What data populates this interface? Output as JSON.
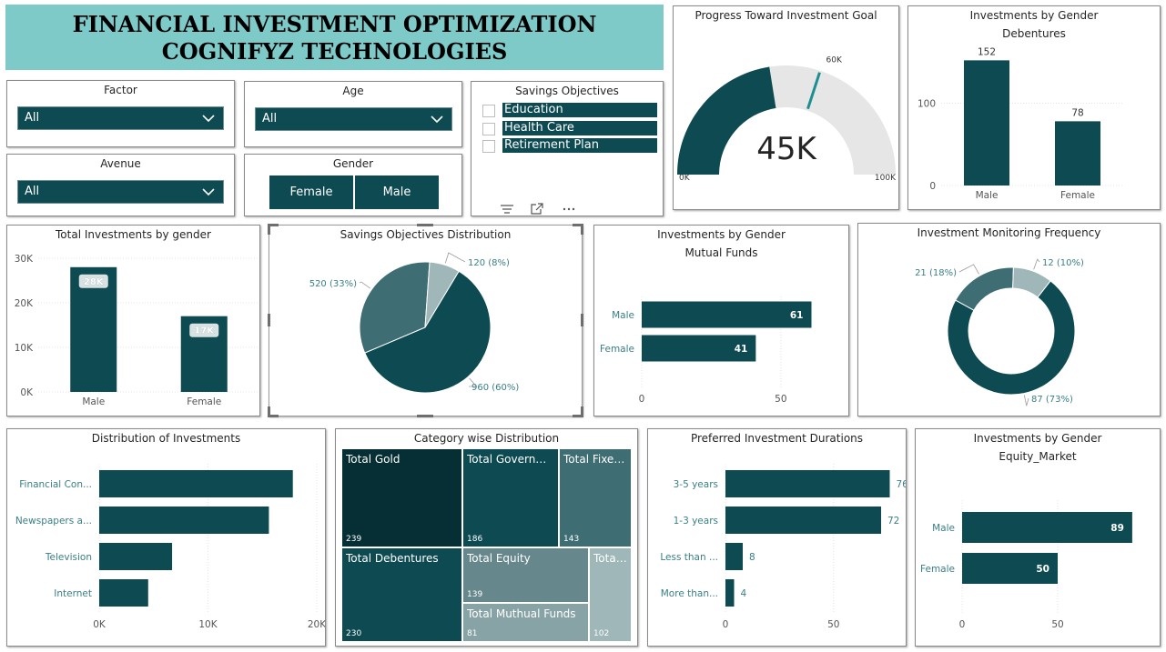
{
  "banner": {
    "line1": "FINANCIAL INVESTMENT OPTIMIZATION",
    "line2": "COGNIFYZ TECHNOLOGIES"
  },
  "slicers": {
    "factor": {
      "title": "Factor",
      "value": "All"
    },
    "age": {
      "title": "Age",
      "value": "All"
    },
    "avenue": {
      "title": "Avenue",
      "value": "All"
    },
    "gender": {
      "title": "Gender",
      "options": [
        "Female",
        "Male"
      ]
    },
    "savings": {
      "title": "Savings Objectives",
      "items": [
        "Education",
        "Health Care",
        "Retirement Plan"
      ]
    }
  },
  "colors": {
    "dark": "#0d4a52",
    "mid": "#3e6e73",
    "light": "#9fb7b9",
    "gauge_bg": "#e6e6e6",
    "banner": "#7ecac9"
  },
  "icons": [
    "chevron-down-icon",
    "filter-lines-icon",
    "focus-mode-icon",
    "more-options-icon",
    "checkbox-icon"
  ],
  "gauge": {
    "title": "Progress Toward Investment Goal",
    "value_label": "45K",
    "value": 45,
    "min": 0,
    "max": 100,
    "target": 60,
    "min_label": "0K",
    "max_label": "100K",
    "target_label": "60K"
  },
  "debentures": {
    "title": "Investments by Gender",
    "subtitle": "Debentures",
    "chart_data": {
      "type": "bar",
      "categories": [
        "Male",
        "Female"
      ],
      "values": [
        152,
        78
      ],
      "yticks": [
        "0",
        "100"
      ],
      "ylim": [
        0,
        180
      ],
      "grid": true
    }
  },
  "total_gender": {
    "title": "Total Investments by gender",
    "chart_data": {
      "type": "bar",
      "categories": [
        "Male",
        "Female"
      ],
      "values": [
        28,
        17
      ],
      "labels": [
        "28K",
        "17K"
      ],
      "yticks": [
        "0K",
        "10K",
        "20K",
        "30K"
      ],
      "ylim": [
        0,
        30
      ],
      "grid": true
    }
  },
  "savings_dist": {
    "title": "Savings Objectives Distribution",
    "chart_data": {
      "type": "pie",
      "values": [
        960,
        520,
        120
      ],
      "labels": [
        "960 (60%)",
        "520 (33%)",
        "120 (8%)"
      ]
    }
  },
  "mutual": {
    "title": "Investments by Gender",
    "subtitle": "Mutual Funds",
    "chart_data": {
      "type": "bar",
      "orientation": "horizontal",
      "categories": [
        "Male",
        "Female"
      ],
      "values": [
        61,
        41
      ],
      "xticks": [
        "0",
        "50"
      ],
      "xlim": [
        0,
        70
      ],
      "grid": true
    }
  },
  "monitoring": {
    "title": "Investment Monitoring Frequency",
    "chart_data": {
      "type": "pie",
      "donut": true,
      "values": [
        87,
        21,
        12
      ],
      "labels": [
        "87 (73%)",
        "21 (18%)",
        "12 (10%)"
      ]
    }
  },
  "distribution": {
    "title": "Distribution of Investments",
    "chart_data": {
      "type": "bar",
      "orientation": "horizontal",
      "categories": [
        "Financial Con...",
        "Newspapers a...",
        "Television",
        "Internet"
      ],
      "values": [
        17.8,
        15.6,
        6.7,
        4.5
      ],
      "xticks": [
        "0K",
        "10K",
        "20K"
      ],
      "xlim": [
        0,
        20
      ],
      "grid": true
    }
  },
  "category": {
    "title": "Category wise Distribution",
    "chart_data": {
      "type": "treemap",
      "labels": [
        "Total Gold",
        "Total Governme...",
        "Total Fixed ...",
        "Total Debentures",
        "Total Equity",
        "Total...",
        "Total Muthual Funds"
      ],
      "values": [
        239,
        186,
        143,
        230,
        139,
        81,
        102
      ]
    }
  },
  "durations": {
    "title": "Preferred Investment Durations",
    "chart_data": {
      "type": "bar",
      "orientation": "horizontal",
      "categories": [
        "3-5 years",
        "1-3 years",
        "Less than ...",
        "More than..."
      ],
      "values": [
        76,
        72,
        8,
        4
      ],
      "xticks": [
        "0",
        "50"
      ],
      "xlim": [
        0,
        80
      ],
      "grid": true
    }
  },
  "equity": {
    "title": "Investments by Gender",
    "subtitle": "Equity_Market",
    "chart_data": {
      "type": "bar",
      "orientation": "horizontal",
      "categories": [
        "Male",
        "Female"
      ],
      "values": [
        89,
        50
      ],
      "xticks": [
        "0",
        "50"
      ],
      "xlim": [
        0,
        100
      ],
      "grid": true
    }
  }
}
